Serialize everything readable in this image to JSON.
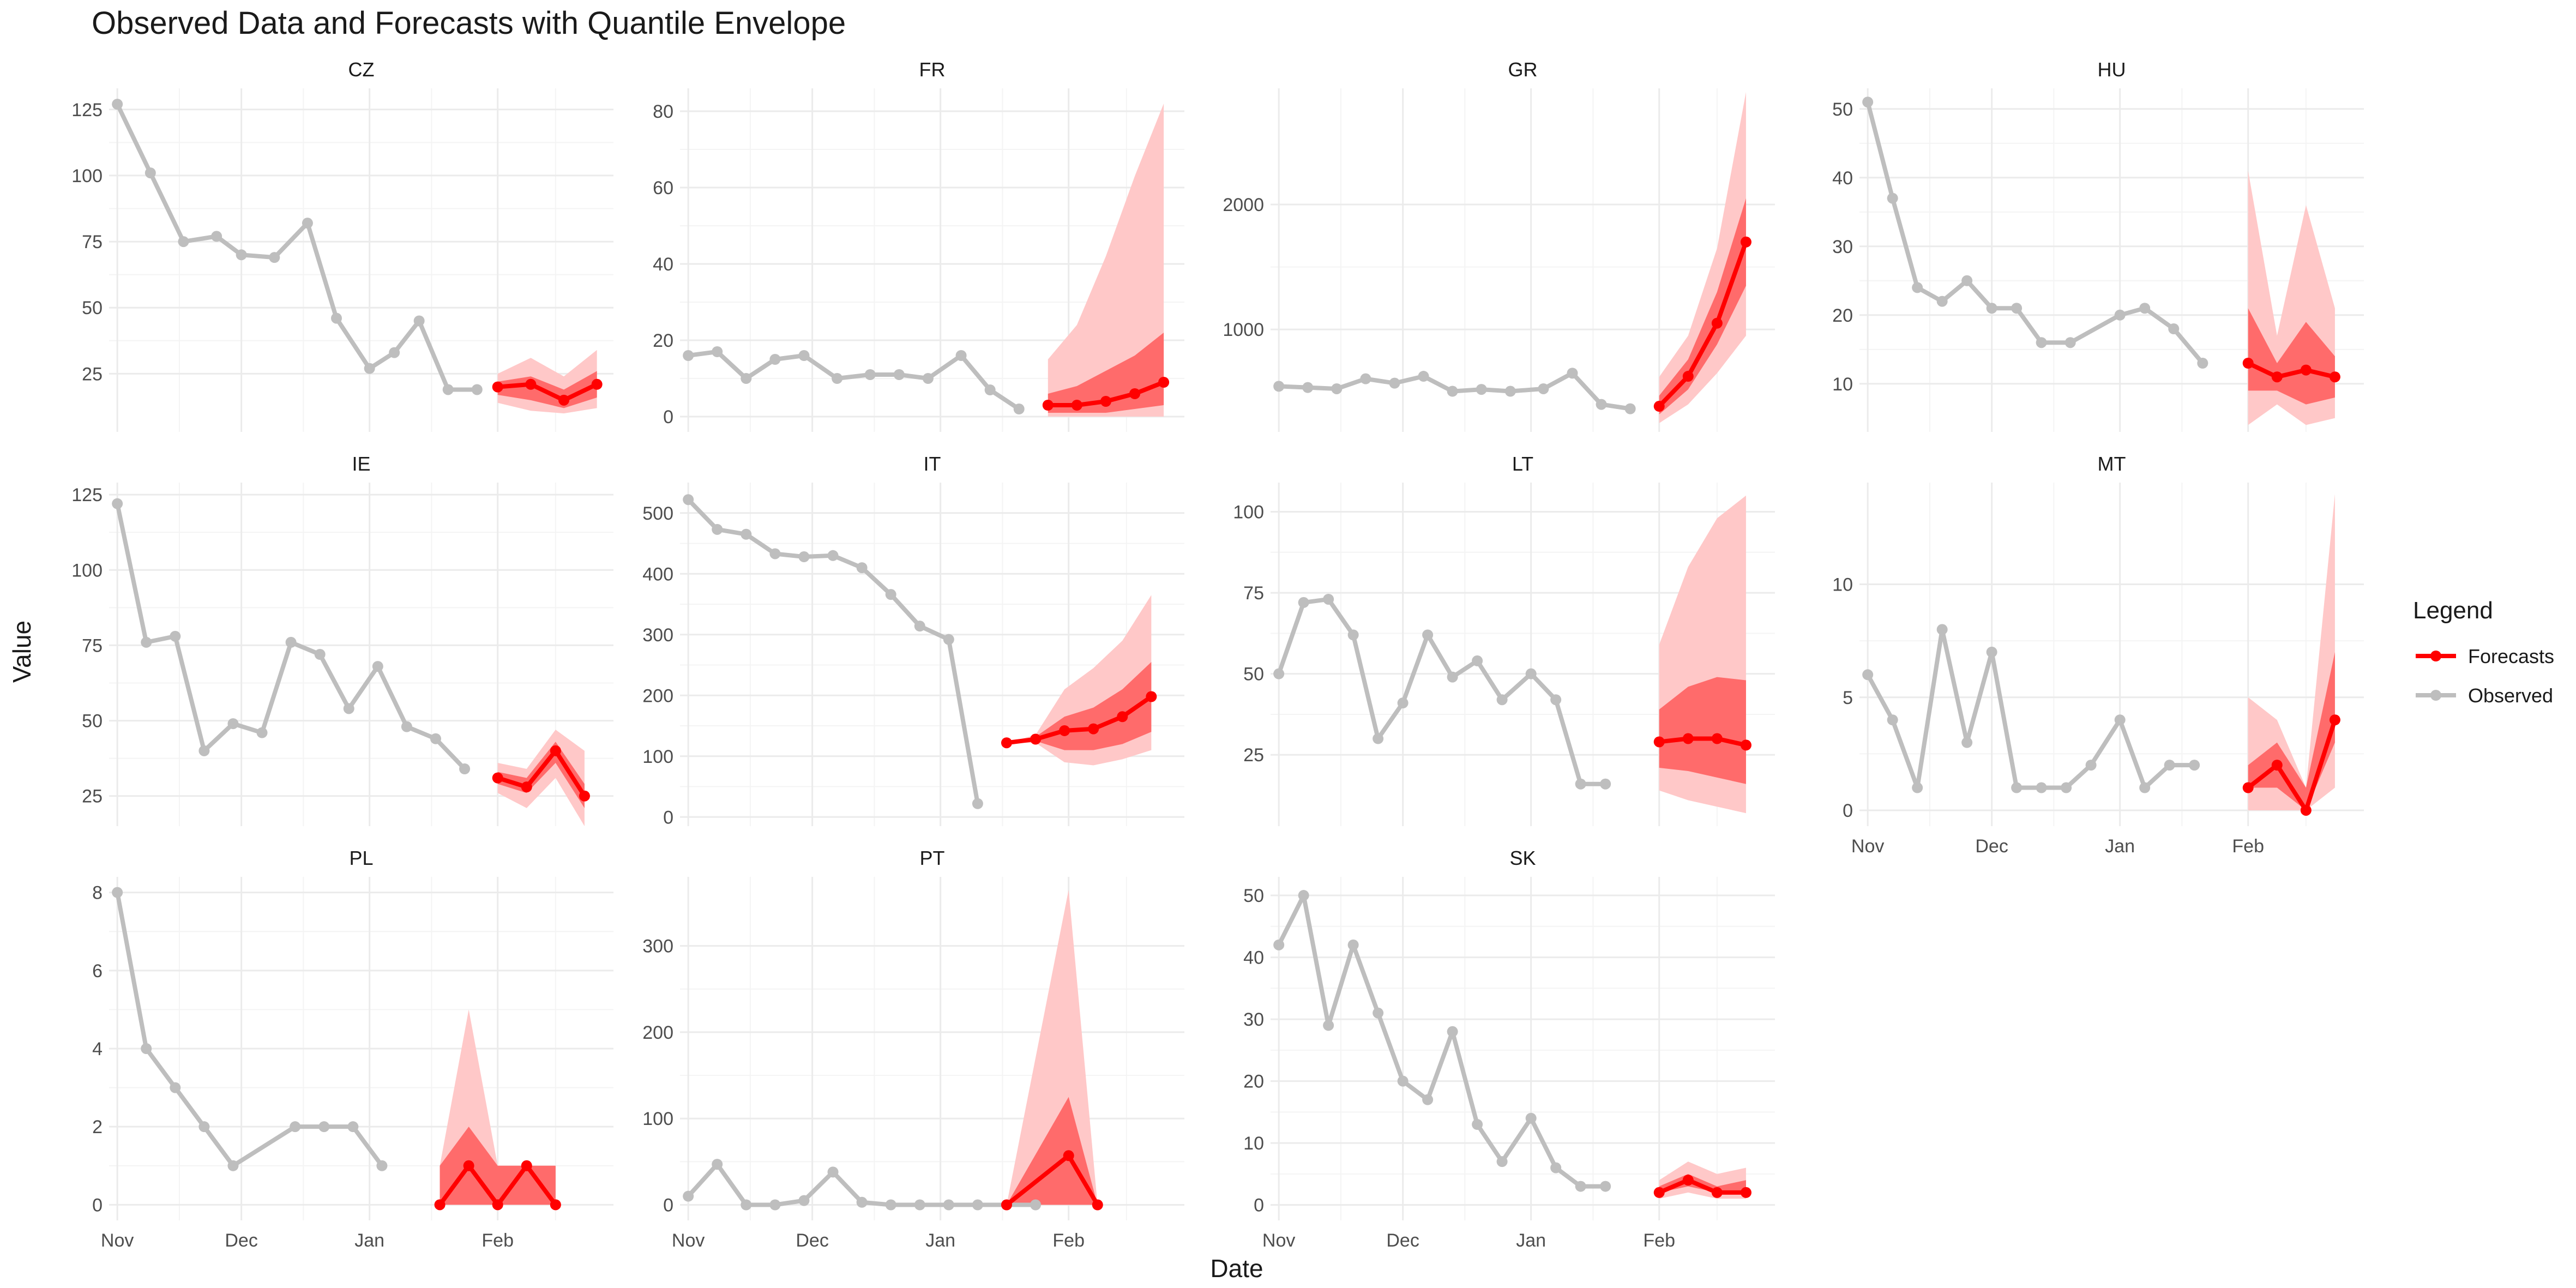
{
  "chart_data": {
    "type": "line",
    "title": "Observed Data and Forecasts with Quantile Envelope",
    "xlabel": "Date",
    "ylabel": "Value",
    "legend": {
      "title": "Legend",
      "placement": "right",
      "entries": [
        {
          "label": "Forecasts",
          "color": "#ff0000"
        },
        {
          "label": "Observed",
          "color": "#bebebe"
        }
      ]
    },
    "colors": {
      "observed": "#bebebe",
      "forecast": "#ff0000",
      "band_inner": "#ff6b6b",
      "band_outer": "#ffc8c8",
      "grid_major": "#ebebeb",
      "grid_minor": "#f4f4f4"
    },
    "x_ticks": [
      "Nov",
      "Dec",
      "Jan",
      "Feb"
    ],
    "x_range": [
      "2023-10-30",
      "2024-02-29"
    ],
    "grid": true,
    "panels": [
      {
        "name": "CZ",
        "ylim": [
          3,
          133
        ],
        "yticks": [
          25,
          50,
          75,
          100,
          125
        ],
        "observed": {
          "x": [
            "2023-11-01",
            "2023-11-09",
            "2023-11-17",
            "2023-11-25",
            "2023-12-01",
            "2023-12-09",
            "2023-12-17",
            "2023-12-24",
            "2024-01-01",
            "2024-01-07",
            "2024-01-13",
            "2024-01-20",
            "2024-01-27"
          ],
          "y": [
            127,
            101,
            75,
            77,
            70,
            69,
            82,
            46,
            27,
            33,
            45,
            19,
            19
          ]
        },
        "forecast": {
          "x": [
            "2024-02-01",
            "2024-02-09",
            "2024-02-17",
            "2024-02-25"
          ],
          "y": [
            20,
            21,
            15,
            21
          ],
          "q_inner_low": [
            17,
            15,
            12,
            16
          ],
          "q_inner_high": [
            22,
            24,
            19,
            26
          ],
          "q_outer_low": [
            14,
            11,
            10,
            12
          ],
          "q_outer_high": [
            25,
            31,
            24,
            34
          ]
        }
      },
      {
        "name": "FR",
        "ylim": [
          -4,
          86
        ],
        "yticks": [
          0,
          20,
          40,
          60,
          80
        ],
        "observed": {
          "x": [
            "2023-11-01",
            "2023-11-08",
            "2023-11-15",
            "2023-11-22",
            "2023-11-29",
            "2023-12-07",
            "2023-12-15",
            "2023-12-22",
            "2023-12-29",
            "2024-01-06",
            "2024-01-13",
            "2024-01-20"
          ],
          "y": [
            16,
            17,
            10,
            15,
            16,
            10,
            11,
            11,
            10,
            16,
            7,
            2
          ]
        },
        "forecast": {
          "x": [
            "2024-01-27",
            "2024-02-03",
            "2024-02-10",
            "2024-02-17",
            "2024-02-24"
          ],
          "y": [
            3,
            3,
            4,
            6,
            9
          ],
          "q_inner_low": [
            1,
            1,
            1,
            2,
            3
          ],
          "q_inner_high": [
            6,
            8,
            12,
            16,
            22
          ],
          "q_outer_low": [
            0,
            0,
            0,
            0,
            0
          ],
          "q_outer_high": [
            15,
            24,
            42,
            63,
            82
          ]
        }
      },
      {
        "name": "GR",
        "ylim": [
          180,
          2930
        ],
        "yticks": [
          1000,
          2000
        ],
        "observed": {
          "x": [
            "2023-11-01",
            "2023-11-08",
            "2023-11-15",
            "2023-11-22",
            "2023-11-29",
            "2023-12-06",
            "2023-12-13",
            "2023-12-20",
            "2023-12-27",
            "2024-01-04",
            "2024-01-11",
            "2024-01-18",
            "2024-01-25"
          ],
          "y": [
            545,
            535,
            525,
            605,
            570,
            625,
            505,
            520,
            505,
            525,
            650,
            400,
            365
          ]
        },
        "forecast": {
          "x": [
            "2024-02-01",
            "2024-02-08",
            "2024-02-15",
            "2024-02-22"
          ],
          "y": [
            385,
            625,
            1050,
            1700
          ],
          "q_inner_low": [
            320,
            520,
            880,
            1350
          ],
          "q_inner_high": [
            470,
            760,
            1300,
            2050
          ],
          "q_outer_low": [
            250,
            400,
            650,
            950
          ],
          "q_outer_high": [
            620,
            950,
            1650,
            2900
          ]
        }
      },
      {
        "name": "HU",
        "ylim": [
          3,
          53
        ],
        "yticks": [
          10,
          20,
          30,
          40,
          50
        ],
        "observed": {
          "x": [
            "2023-11-01",
            "2023-11-07",
            "2023-11-13",
            "2023-11-19",
            "2023-11-25",
            "2023-12-01",
            "2023-12-07",
            "2023-12-13",
            "2023-12-20",
            "2024-01-01",
            "2024-01-07",
            "2024-01-14",
            "2024-01-21"
          ],
          "y": [
            51,
            37,
            24,
            22,
            25,
            21,
            21,
            16,
            16,
            20,
            21,
            18,
            13
          ]
        },
        "forecast": {
          "x": [
            "2024-02-01",
            "2024-02-08",
            "2024-02-15",
            "2024-02-22"
          ],
          "y": [
            13,
            11,
            12,
            11
          ],
          "q_inner_low": [
            9,
            9,
            7,
            8
          ],
          "q_inner_high": [
            21,
            13,
            19,
            14
          ],
          "q_outer_low": [
            4,
            7,
            4,
            5
          ],
          "q_outer_high": [
            41,
            17,
            36,
            21
          ]
        }
      },
      {
        "name": "IE",
        "ylim": [
          15,
          129
        ],
        "yticks": [
          25,
          50,
          75,
          100,
          125
        ],
        "observed": {
          "x": [
            "2023-11-01",
            "2023-11-08",
            "2023-11-15",
            "2023-11-22",
            "2023-11-29",
            "2023-12-06",
            "2023-12-13",
            "2023-12-20",
            "2023-12-27",
            "2024-01-03",
            "2024-01-10",
            "2024-01-17",
            "2024-01-24"
          ],
          "y": [
            122,
            76,
            78,
            40,
            49,
            46,
            76,
            72,
            54,
            68,
            48,
            44,
            34
          ]
        },
        "forecast": {
          "x": [
            "2024-02-01",
            "2024-02-08",
            "2024-02-15",
            "2024-02-22"
          ],
          "y": [
            31,
            28,
            40,
            25
          ],
          "q_inner_low": [
            29,
            26,
            36,
            21
          ],
          "q_inner_high": [
            33,
            31,
            43,
            29
          ],
          "q_outer_low": [
            26,
            21,
            31,
            15
          ],
          "q_outer_high": [
            36,
            34,
            47,
            40
          ]
        }
      },
      {
        "name": "IT",
        "ylim": [
          -15,
          550
        ],
        "yticks": [
          0,
          100,
          200,
          300,
          400,
          500
        ],
        "observed": {
          "x": [
            "2023-11-01",
            "2023-11-08",
            "2023-11-15",
            "2023-11-22",
            "2023-11-29",
            "2023-12-06",
            "2023-12-13",
            "2023-12-20",
            "2023-12-27",
            "2024-01-03",
            "2024-01-10"
          ],
          "y": [
            522,
            473,
            465,
            433,
            428,
            430,
            410,
            366,
            314,
            292,
            22
          ]
        },
        "forecast": {
          "x": [
            "2024-01-17",
            "2024-01-24",
            "2024-01-31",
            "2024-02-07",
            "2024-02-14",
            "2024-02-21"
          ],
          "y": [
            122,
            128,
            142,
            145,
            165,
            198
          ],
          "q_inner_low": [
            122,
            125,
            110,
            110,
            120,
            140
          ],
          "q_inner_high": [
            122,
            132,
            165,
            180,
            210,
            255
          ],
          "q_outer_low": [
            122,
            122,
            90,
            85,
            95,
            110
          ],
          "q_outer_high": [
            122,
            135,
            210,
            245,
            290,
            365
          ]
        }
      },
      {
        "name": "LT",
        "ylim": [
          3,
          109
        ],
        "yticks": [
          25,
          50,
          75,
          100
        ],
        "observed": {
          "x": [
            "2023-11-01",
            "2023-11-07",
            "2023-11-13",
            "2023-11-19",
            "2023-11-25",
            "2023-12-01",
            "2023-12-07",
            "2023-12-13",
            "2023-12-19",
            "2023-12-25",
            "2024-01-01",
            "2024-01-07",
            "2024-01-13",
            "2024-01-19"
          ],
          "y": [
            50,
            72,
            73,
            62,
            30,
            41,
            62,
            49,
            54,
            42,
            50,
            42,
            16,
            16
          ]
        },
        "forecast": {
          "x": [
            "2024-02-01",
            "2024-02-08",
            "2024-02-15",
            "2024-02-22"
          ],
          "y": [
            29,
            30,
            30,
            28
          ],
          "q_inner_low": [
            21,
            20,
            18,
            16
          ],
          "q_inner_high": [
            39,
            46,
            49,
            48
          ],
          "q_outer_low": [
            14,
            11,
            9,
            7
          ],
          "q_outer_high": [
            59,
            83,
            98,
            105
          ]
        }
      },
      {
        "name": "MT",
        "ylim": [
          -0.7,
          14.5
        ],
        "yticks": [
          0,
          5,
          10
        ],
        "observed": {
          "x": [
            "2023-11-01",
            "2023-11-07",
            "2023-11-13",
            "2023-11-19",
            "2023-11-25",
            "2023-12-01",
            "2023-12-07",
            "2023-12-13",
            "2023-12-19",
            "2023-12-25",
            "2024-01-01",
            "2024-01-07",
            "2024-01-13",
            "2024-01-19"
          ],
          "y": [
            6,
            4,
            1,
            8,
            3,
            7,
            1,
            1,
            1,
            2,
            4,
            1,
            2,
            2
          ]
        },
        "forecast": {
          "x": [
            "2024-02-01",
            "2024-02-08",
            "2024-02-15",
            "2024-02-22"
          ],
          "y": [
            1,
            2,
            0,
            4
          ],
          "q_inner_low": [
            1,
            1,
            0,
            3
          ],
          "q_inner_high": [
            2,
            3,
            1,
            7
          ],
          "q_outer_low": [
            0,
            0,
            0,
            1
          ],
          "q_outer_high": [
            5,
            4,
            1,
            14
          ]
        }
      },
      {
        "name": "PL",
        "ylim": [
          -0.4,
          8.4
        ],
        "yticks": [
          0,
          2,
          4,
          6,
          8
        ],
        "observed": {
          "x": [
            "2023-11-01",
            "2023-11-08",
            "2023-11-15",
            "2023-11-22",
            "2023-11-29",
            "2023-12-14",
            "2023-12-21",
            "2023-12-28",
            "2024-01-04"
          ],
          "y": [
            8,
            4,
            3,
            2,
            1,
            2,
            2,
            2,
            1
          ]
        },
        "forecast": {
          "x": [
            "2024-01-18",
            "2024-01-25",
            "2024-02-01",
            "2024-02-08",
            "2024-02-15"
          ],
          "y": [
            0,
            1,
            0,
            1,
            0
          ],
          "q_inner_low": [
            0,
            0,
            0,
            0,
            0
          ],
          "q_inner_high": [
            1,
            2,
            1,
            1,
            1
          ],
          "q_outer_low": [
            0,
            0,
            0,
            0,
            0
          ],
          "q_outer_high": [
            1,
            5,
            1,
            1,
            1
          ]
        }
      },
      {
        "name": "PT",
        "ylim": [
          -18,
          380
        ],
        "yticks": [
          0,
          100,
          200,
          300
        ],
        "observed": {
          "x": [
            "2023-11-01",
            "2023-11-08",
            "2023-11-15",
            "2023-11-22",
            "2023-11-29",
            "2023-12-06",
            "2023-12-13",
            "2023-12-20",
            "2023-12-27",
            "2024-01-03",
            "2024-01-10",
            "2024-01-17",
            "2024-01-24"
          ],
          "y": [
            10,
            47,
            0,
            0,
            5,
            38,
            3,
            0,
            0,
            0,
            0,
            0,
            0
          ]
        },
        "forecast": {
          "x": [
            "2024-01-17",
            "2024-02-01",
            "2024-02-08"
          ],
          "y": [
            0,
            57,
            0
          ],
          "q_inner_low": [
            0,
            0,
            0
          ],
          "q_inner_high": [
            0,
            125,
            0
          ],
          "q_outer_low": [
            0,
            0,
            0
          ],
          "q_outer_high": [
            0,
            365,
            0
          ]
        }
      },
      {
        "name": "SK",
        "ylim": [
          -2.5,
          53
        ],
        "yticks": [
          0,
          10,
          20,
          30,
          40,
          50
        ],
        "observed": {
          "x": [
            "2023-11-01",
            "2023-11-07",
            "2023-11-13",
            "2023-11-19",
            "2023-11-25",
            "2023-12-01",
            "2023-12-07",
            "2023-12-13",
            "2023-12-19",
            "2023-12-25",
            "2024-01-01",
            "2024-01-07",
            "2024-01-13",
            "2024-01-19"
          ],
          "y": [
            42,
            50,
            29,
            42,
            31,
            20,
            17,
            28,
            13,
            7,
            14,
            6,
            3,
            3
          ]
        },
        "forecast": {
          "x": [
            "2024-02-01",
            "2024-02-08",
            "2024-02-15",
            "2024-02-22"
          ],
          "y": [
            2,
            4,
            2,
            2
          ],
          "q_inner_low": [
            2,
            3,
            2,
            2
          ],
          "q_inner_high": [
            3,
            5,
            3,
            4
          ],
          "q_outer_low": [
            1,
            2,
            1,
            1
          ],
          "q_outer_high": [
            4,
            7,
            5,
            6
          ]
        }
      }
    ]
  }
}
